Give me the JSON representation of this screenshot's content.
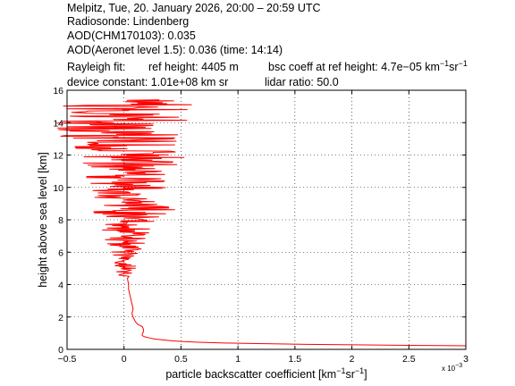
{
  "header": {
    "line1": "Melpitz, Tue, 20. January 2026, 20:00 – 20:59 UTC",
    "line2": "Radiosonde: Lindenberg",
    "line3": "AOD(CHM170103): 0.035",
    "line4": "AOD(Aeronet level 1.5): 0.036   (time: 14:14)",
    "rayleigh_label": "Rayleigh fit:",
    "ref_height": "ref height: 4405 m",
    "bsc_prefix": "bsc coeff at ref height: 4.7e−05 km",
    "device_constant": "device constant: 1.01e+08 km sr",
    "lidar_ratio": "lidar ratio: 50.0"
  },
  "units": {
    "inv_exp": "−1",
    "km": "km",
    "sr": "sr"
  },
  "chart_data": {
    "type": "line",
    "xlabel_prefix": "particle backscatter coefficient [km",
    "ylabel": "height above sea level [km]",
    "x_multiplier": "x 10",
    "x_multiplier_exp": "−3",
    "xlim": [
      -0.5,
      3.0
    ],
    "ylim": [
      0,
      16
    ],
    "xticks": [
      -0.5,
      0,
      0.5,
      1,
      1.5,
      2,
      2.5,
      3
    ],
    "xtick_labels": [
      "−0.5",
      "0",
      "0.5",
      "1",
      "1.5",
      "2",
      "2.5",
      "3"
    ],
    "yticks": [
      0,
      2,
      4,
      6,
      8,
      10,
      12,
      14,
      16
    ],
    "ytick_labels": [
      "0",
      "2",
      "4",
      "6",
      "8",
      "10",
      "12",
      "14",
      "16"
    ],
    "grid": true,
    "line_color": "#ff0000",
    "series": [
      {
        "profile_near_ground": {
          "height_km": [
            0.22,
            0.25,
            0.28,
            0.31,
            0.34,
            0.37,
            0.4,
            0.44,
            0.48,
            0.53,
            0.58,
            0.63,
            0.68,
            0.73,
            0.78,
            0.85,
            0.95,
            1.1,
            1.25,
            1.4,
            1.55,
            1.7,
            1.85,
            2.0,
            2.2,
            2.5,
            2.8,
            3.1,
            3.4,
            3.7,
            4.0,
            4.4
          ],
          "value": [
            3.0,
            2.5,
            2.0,
            1.6,
            1.3,
            1.05,
            0.85,
            0.65,
            0.52,
            0.42,
            0.35,
            0.28,
            0.24,
            0.21,
            0.18,
            0.16,
            0.16,
            0.17,
            0.17,
            0.16,
            0.12,
            0.1,
            0.09,
            0.08,
            0.07,
            0.08,
            0.07,
            0.06,
            0.05,
            0.04,
            0.04,
            0.03
          ]
        },
        "noise_envelope": {
          "height_km": [
            4.4,
            5.0,
            6.0,
            7.0,
            8.0,
            8.5,
            9.0,
            10.0,
            11.0,
            11.8,
            12.5,
            13.0,
            13.5,
            14.0,
            14.5,
            15.0,
            15.4
          ],
          "min": [
            -0.05,
            -0.08,
            -0.12,
            -0.18,
            -0.22,
            -0.28,
            -0.25,
            -0.28,
            -0.4,
            -0.45,
            -0.52,
            -0.55,
            -0.6,
            -0.62,
            -0.65,
            -0.6,
            -0.6
          ],
          "max": [
            0.1,
            0.12,
            0.14,
            0.22,
            0.28,
            0.52,
            0.3,
            0.4,
            0.45,
            0.55,
            0.5,
            0.45,
            0.5,
            0.55,
            0.58,
            0.6,
            1.0
          ]
        }
      }
    ]
  }
}
